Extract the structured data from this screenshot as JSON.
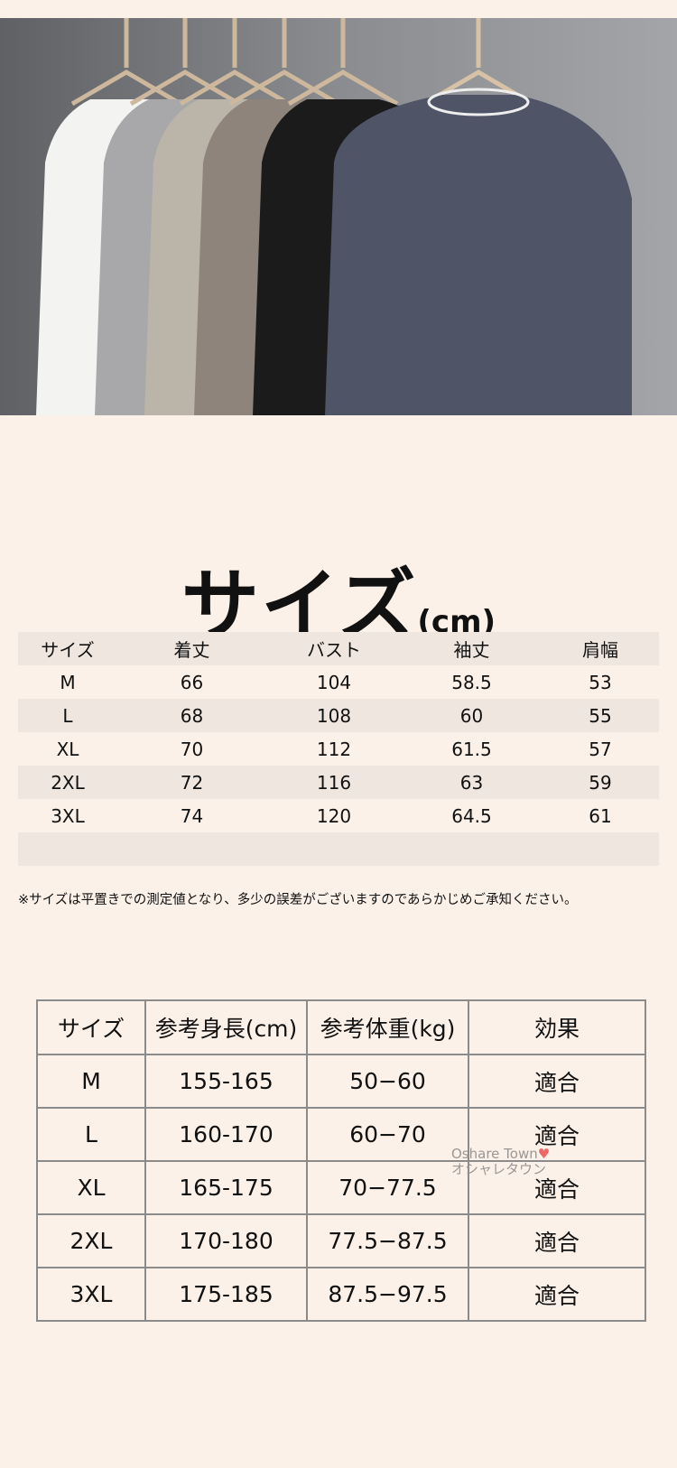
{
  "photo": {
    "shirt_colors": [
      "#f3f3f1",
      "#a8a8aa",
      "#bab5a8",
      "#8e847b",
      "#1b1b1b",
      "#4f5567"
    ],
    "background": "#7d7f83"
  },
  "title": {
    "main": "サイズ",
    "unit": "(cm)"
  },
  "size_chart": {
    "headers": [
      "サイズ",
      "着丈",
      "バスト",
      "袖丈",
      "肩幅"
    ],
    "rows": [
      [
        "M",
        "66",
        "104",
        "58.5",
        "53"
      ],
      [
        "L",
        "68",
        "108",
        "60",
        "55"
      ],
      [
        "XL",
        "70",
        "112",
        "61.5",
        "57"
      ],
      [
        "2XL",
        "72",
        "116",
        "63",
        "59"
      ],
      [
        "3XL",
        "74",
        "120",
        "64.5",
        "61"
      ]
    ]
  },
  "note": "※サイズは平置きでの測定値となり、多少の誤差がございますのであらかじめご承知ください。",
  "fit_chart": {
    "headers": [
      "サイズ",
      "参考身長(cm)",
      "参考体重(kg)",
      "効果"
    ],
    "rows": [
      [
        "M",
        "155-165",
        "50−60",
        "適合"
      ],
      [
        "L",
        "160-170",
        "60−70",
        "適合"
      ],
      [
        "XL",
        "165-175",
        "70−77.5",
        "適合"
      ],
      [
        "2XL",
        "170-180",
        "77.5−87.5",
        "適合"
      ],
      [
        "3XL",
        "175-185",
        "87.5−97.5",
        "適合"
      ]
    ]
  },
  "watermark": {
    "line1": "Oshare Town",
    "line2": "オシャレタウン"
  }
}
